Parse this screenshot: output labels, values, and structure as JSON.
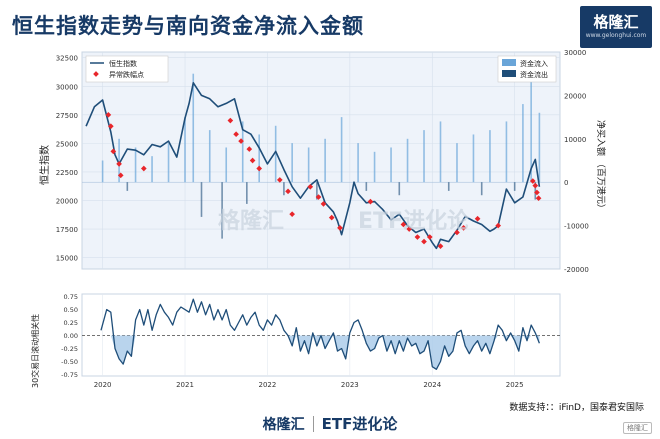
{
  "title": "恒生指数走势与南向资金净流入金额",
  "logo": {
    "text": "格隆汇",
    "sub": "www.gelonghui.com"
  },
  "source": "数据支持：：iFinD，国泰君安国际",
  "footer": {
    "brand": "格隆汇",
    "right": "ETF进化论"
  },
  "watermark": {
    "left": "格隆汇",
    "right": "ETF进化论"
  },
  "badge": "格隆汇",
  "colors": {
    "index": "#1f4e79",
    "inflow": "#6aa5d8",
    "outflow": "#1f4e79",
    "marker": "#e8262b",
    "fill": "#a8c9e8"
  },
  "chart_data": [
    {
      "type": "line",
      "ylabel": "恒生指数",
      "y2label": "净买入额 （百万港元）",
      "ylim": [
        14000,
        33000
      ],
      "y2lim": [
        -20000,
        30000
      ],
      "yticks": [
        15000,
        17500,
        20000,
        22500,
        25000,
        27500,
        30000,
        32500
      ],
      "y2ticks": [
        -20000,
        -10000,
        0,
        10000,
        20000,
        30000
      ],
      "xticks": [
        "2020",
        "2021",
        "2022",
        "2023",
        "2024",
        "2025"
      ],
      "legend_left": [
        "恒生指数",
        "异常跌幅点"
      ],
      "legend_right": [
        "资金流入",
        "资金流出"
      ],
      "series": [
        {
          "name": "恒生指数",
          "x": [
            2019.8,
            2019.9,
            2020.0,
            2020.1,
            2020.15,
            2020.2,
            2020.3,
            2020.4,
            2020.5,
            2020.6,
            2020.7,
            2020.8,
            2020.9,
            2021.0,
            2021.05,
            2021.1,
            2021.2,
            2021.3,
            2021.4,
            2021.5,
            2021.6,
            2021.7,
            2021.8,
            2021.9,
            2022.0,
            2022.1,
            2022.2,
            2022.3,
            2022.4,
            2022.5,
            2022.6,
            2022.7,
            2022.8,
            2022.85,
            2022.9,
            2023.0,
            2023.05,
            2023.1,
            2023.2,
            2023.3,
            2023.4,
            2023.5,
            2023.6,
            2023.7,
            2023.8,
            2023.9,
            2024.0,
            2024.05,
            2024.1,
            2024.2,
            2024.3,
            2024.4,
            2024.5,
            2024.6,
            2024.7,
            2024.75,
            2024.8,
            2024.9,
            2025.0,
            2025.1,
            2025.2,
            2025.25,
            2025.3
          ],
          "values": [
            26500,
            28200,
            28800,
            26000,
            24000,
            23200,
            24500,
            24400,
            24000,
            24900,
            24700,
            25200,
            23800,
            27200,
            28500,
            30300,
            29200,
            28900,
            28200,
            28500,
            28900,
            26200,
            25800,
            24600,
            23200,
            24300,
            22700,
            21200,
            20200,
            21200,
            21800,
            19800,
            19000,
            18200,
            17000,
            19800,
            21600,
            20600,
            19800,
            19900,
            19200,
            18300,
            18800,
            17800,
            17200,
            17500,
            16300,
            15800,
            16600,
            16400,
            17400,
            18600,
            18200,
            17900,
            17300,
            17500,
            17800,
            21000,
            19800,
            20300,
            22800,
            23600,
            21200
          ]
        },
        {
          "name": "异常跌幅点",
          "x": [
            2020.07,
            2020.1,
            2020.13,
            2020.2,
            2020.22,
            2020.5,
            2021.55,
            2021.62,
            2021.68,
            2021.78,
            2021.82,
            2021.9,
            2022.15,
            2022.25,
            2022.3,
            2022.52,
            2022.62,
            2022.68,
            2022.78,
            2022.88,
            2023.25,
            2023.65,
            2023.72,
            2023.82,
            2023.9,
            2023.97,
            2024.1,
            2024.3,
            2024.38,
            2024.55,
            2024.8,
            2025.22,
            2025.25,
            2025.27,
            2025.29
          ],
          "values": [
            27500,
            26500,
            24300,
            23200,
            22200,
            22800,
            27000,
            25800,
            25200,
            24500,
            23500,
            22800,
            21800,
            20800,
            18800,
            21200,
            20300,
            19700,
            18500,
            17600,
            19900,
            17900,
            17500,
            16800,
            16400,
            16800,
            16000,
            17200,
            17600,
            18400,
            17800,
            21700,
            21300,
            20700,
            20200
          ]
        },
        {
          "name": "资金流入",
          "x": [
            2020.0,
            2020.2,
            2020.4,
            2020.6,
            2020.8,
            2021.0,
            2021.1,
            2021.3,
            2021.5,
            2021.7,
            2021.9,
            2022.1,
            2022.3,
            2022.5,
            2022.7,
            2022.9,
            2023.1,
            2023.3,
            2023.5,
            2023.7,
            2023.9,
            2024.1,
            2024.3,
            2024.5,
            2024.7,
            2024.9,
            2025.1,
            2025.2,
            2025.3
          ],
          "values": [
            5000,
            10000,
            8000,
            6000,
            9000,
            15000,
            25000,
            12000,
            8000,
            14000,
            11000,
            13000,
            9000,
            8000,
            10000,
            15000,
            9000,
            7000,
            8000,
            10000,
            12000,
            14000,
            9000,
            11000,
            12000,
            14000,
            18000,
            27000,
            16000
          ]
        },
        {
          "name": "资金流出",
          "x": [
            2020.3,
            2021.2,
            2021.45,
            2021.75,
            2022.2,
            2022.6,
            2023.2,
            2023.6,
            2024.2,
            2024.6,
            2025.0,
            2025.25
          ],
          "values": [
            -2000,
            -8000,
            -13000,
            -5000,
            -3000,
            -4000,
            -2000,
            -3000,
            -2000,
            -3000,
            -2000,
            -4000
          ]
        }
      ]
    },
    {
      "type": "area",
      "ylabel": "30交易日滚动相关性",
      "ylim": [
        -0.78,
        0.8
      ],
      "yticks": [
        -0.75,
        -0.5,
        -0.25,
        0.0,
        0.25,
        0.5,
        0.75
      ],
      "xticks": [
        "2020",
        "2021",
        "2022",
        "2023",
        "2024",
        "2025"
      ],
      "series": [
        {
          "name": "30交易日滚动相关性",
          "x": [
            2019.98,
            2020.05,
            2020.1,
            2020.15,
            2020.2,
            2020.25,
            2020.3,
            2020.35,
            2020.4,
            2020.45,
            2020.5,
            2020.55,
            2020.6,
            2020.65,
            2020.7,
            2020.75,
            2020.8,
            2020.85,
            2020.9,
            2020.95,
            2021.0,
            2021.05,
            2021.1,
            2021.15,
            2021.2,
            2021.25,
            2021.3,
            2021.35,
            2021.4,
            2021.45,
            2021.5,
            2021.55,
            2021.6,
            2021.65,
            2021.7,
            2021.75,
            2021.8,
            2021.85,
            2021.9,
            2021.95,
            2022.0,
            2022.05,
            2022.1,
            2022.15,
            2022.2,
            2022.25,
            2022.3,
            2022.35,
            2022.4,
            2022.45,
            2022.5,
            2022.55,
            2022.6,
            2022.65,
            2022.7,
            2022.75,
            2022.8,
            2022.85,
            2022.9,
            2022.95,
            2023.0,
            2023.05,
            2023.1,
            2023.15,
            2023.2,
            2023.25,
            2023.3,
            2023.35,
            2023.4,
            2023.45,
            2023.5,
            2023.55,
            2023.6,
            2023.65,
            2023.7,
            2023.75,
            2023.8,
            2023.85,
            2023.9,
            2023.95,
            2024.0,
            2024.05,
            2024.1,
            2024.15,
            2024.2,
            2024.25,
            2024.3,
            2024.35,
            2024.4,
            2024.45,
            2024.5,
            2024.55,
            2024.6,
            2024.65,
            2024.7,
            2024.75,
            2024.8,
            2024.85,
            2024.9,
            2024.95,
            2025.0,
            2025.05,
            2025.1,
            2025.15,
            2025.2,
            2025.25,
            2025.3
          ],
          "values": [
            0.1,
            0.5,
            0.45,
            -0.25,
            -0.45,
            -0.55,
            -0.3,
            -0.4,
            0.3,
            0.5,
            0.2,
            0.5,
            0.1,
            0.4,
            0.6,
            0.45,
            0.35,
            0.2,
            0.45,
            0.55,
            0.5,
            0.45,
            0.7,
            0.45,
            0.65,
            0.4,
            0.6,
            0.3,
            0.5,
            0.3,
            0.5,
            0.2,
            0.1,
            0.25,
            0.4,
            0.2,
            0.35,
            0.45,
            0.2,
            0.1,
            0.3,
            0.2,
            0.4,
            0.3,
            0.1,
            0.0,
            -0.2,
            0.15,
            -0.3,
            -0.1,
            -0.35,
            0.05,
            -0.2,
            0.0,
            -0.25,
            -0.1,
            0.05,
            -0.3,
            -0.25,
            -0.45,
            0.05,
            0.25,
            0.3,
            0.1,
            -0.15,
            -0.3,
            -0.25,
            -0.05,
            0.0,
            -0.3,
            -0.1,
            -0.35,
            -0.1,
            -0.3,
            -0.05,
            -0.2,
            -0.15,
            -0.35,
            -0.3,
            -0.1,
            -0.6,
            -0.65,
            -0.5,
            -0.2,
            -0.4,
            -0.3,
            0.05,
            0.1,
            -0.2,
            -0.35,
            -0.2,
            -0.1,
            -0.3,
            -0.15,
            -0.35,
            -0.1,
            0.2,
            0.1,
            -0.1,
            0.05,
            -0.1,
            -0.3,
            0.15,
            -0.1,
            0.2,
            0.05,
            -0.15
          ]
        }
      ]
    }
  ]
}
